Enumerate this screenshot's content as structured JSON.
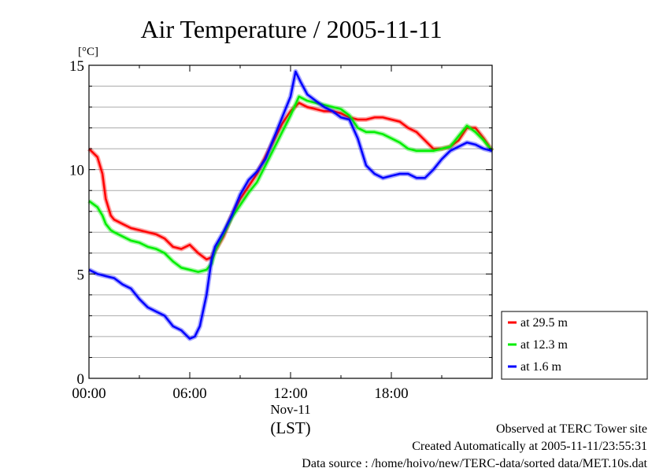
{
  "chart_data": {
    "type": "line",
    "title": "Air Temperature / 2005-11-11",
    "ylabel": "[°C]",
    "xlabel": "(LST)",
    "x_date_label": "Nov-11",
    "ylim": [
      0,
      15
    ],
    "xlim_hours": [
      0,
      24
    ],
    "y_ticks": [
      "0",
      "5",
      "10",
      "15"
    ],
    "x_ticks": [
      "00:00",
      "06:00",
      "12:00",
      "18:00"
    ],
    "grid": "horizontal",
    "legend_position": "right",
    "series": [
      {
        "name": "at 29.5 m",
        "color": "#ff0000",
        "x": [
          0,
          0.5,
          0.8,
          1.0,
          1.3,
          1.5,
          2,
          2.5,
          3,
          3.5,
          4,
          4.5,
          5,
          5.5,
          6,
          6.5,
          7,
          7.3,
          7.5,
          8,
          8.5,
          9,
          9.5,
          10,
          10.5,
          11,
          11.5,
          12,
          12.5,
          13,
          13.5,
          14,
          14.5,
          15,
          15.5,
          16,
          16.5,
          17,
          17.5,
          18,
          18.5,
          19,
          19.5,
          20,
          20.5,
          21,
          21.5,
          22,
          22.5,
          23,
          23.5,
          24
        ],
        "y": [
          11.0,
          10.6,
          9.8,
          8.6,
          7.8,
          7.6,
          7.4,
          7.2,
          7.1,
          7.0,
          6.9,
          6.7,
          6.3,
          6.2,
          6.4,
          6.0,
          5.7,
          5.8,
          6.1,
          6.8,
          7.8,
          8.6,
          9.2,
          9.8,
          10.6,
          11.4,
          12.2,
          12.8,
          13.2,
          13.0,
          12.9,
          12.8,
          12.8,
          12.7,
          12.5,
          12.4,
          12.4,
          12.5,
          12.5,
          12.4,
          12.3,
          12.0,
          11.8,
          11.4,
          11.0,
          11.0,
          11.1,
          11.4,
          12.0,
          12.0,
          11.5,
          10.9
        ]
      },
      {
        "name": "at 12.3 m",
        "color": "#00ee00",
        "x": [
          0,
          0.5,
          0.8,
          1.0,
          1.3,
          1.5,
          2,
          2.5,
          3,
          3.5,
          4,
          4.5,
          5,
          5.5,
          6,
          6.5,
          7,
          7.3,
          7.5,
          8,
          8.5,
          9,
          9.5,
          10,
          10.5,
          11,
          11.5,
          12,
          12.5,
          13,
          13.5,
          14,
          14.5,
          15,
          15.5,
          16,
          16.5,
          17,
          17.5,
          18,
          18.5,
          19,
          19.5,
          20,
          20.5,
          21,
          21.5,
          22,
          22.5,
          23,
          23.5,
          24
        ],
        "y": [
          8.5,
          8.2,
          7.8,
          7.4,
          7.1,
          7.0,
          6.8,
          6.6,
          6.5,
          6.3,
          6.2,
          6.0,
          5.6,
          5.3,
          5.2,
          5.1,
          5.2,
          5.5,
          6.1,
          6.9,
          7.7,
          8.3,
          8.9,
          9.4,
          10.2,
          11.0,
          11.8,
          12.6,
          13.5,
          13.3,
          13.2,
          13.1,
          13.0,
          12.9,
          12.6,
          12.0,
          11.8,
          11.8,
          11.7,
          11.5,
          11.3,
          11.0,
          10.9,
          10.9,
          10.9,
          11.0,
          11.1,
          11.6,
          12.1,
          11.8,
          11.4,
          10.9
        ]
      },
      {
        "name": "at 1.6 m",
        "color": "#0000ff",
        "x": [
          0,
          0.5,
          1.0,
          1.5,
          2,
          2.5,
          3,
          3.5,
          4,
          4.5,
          5,
          5.5,
          6,
          6.3,
          6.6,
          7,
          7.3,
          7.5,
          8,
          8.5,
          9,
          9.5,
          10,
          10.5,
          11,
          11.5,
          12,
          12.3,
          12.6,
          13,
          13.5,
          14,
          14.5,
          15,
          15.5,
          16,
          16.5,
          17,
          17.5,
          18,
          18.5,
          19,
          19.5,
          20,
          20.5,
          21,
          21.5,
          22,
          22.5,
          23,
          23.5,
          24
        ],
        "y": [
          5.2,
          5.0,
          4.9,
          4.8,
          4.5,
          4.3,
          3.8,
          3.4,
          3.2,
          3.0,
          2.5,
          2.3,
          1.9,
          2.0,
          2.5,
          4.0,
          5.7,
          6.3,
          7.0,
          7.8,
          8.8,
          9.5,
          9.9,
          10.5,
          11.5,
          12.5,
          13.5,
          14.7,
          14.2,
          13.6,
          13.3,
          13.0,
          12.8,
          12.5,
          12.4,
          11.5,
          10.2,
          9.8,
          9.6,
          9.7,
          9.8,
          9.8,
          9.6,
          9.6,
          10.0,
          10.5,
          10.9,
          11.1,
          11.3,
          11.2,
          11.0,
          10.9
        ]
      }
    ]
  },
  "footer": {
    "line1": "Observed at TERC Tower site",
    "line2": "Created Automatically at 2005-11-11/23:55:31",
    "line3": "Data source : /home/hoivo/new/TERC-data/sorted  data/MET.10s.dat"
  }
}
